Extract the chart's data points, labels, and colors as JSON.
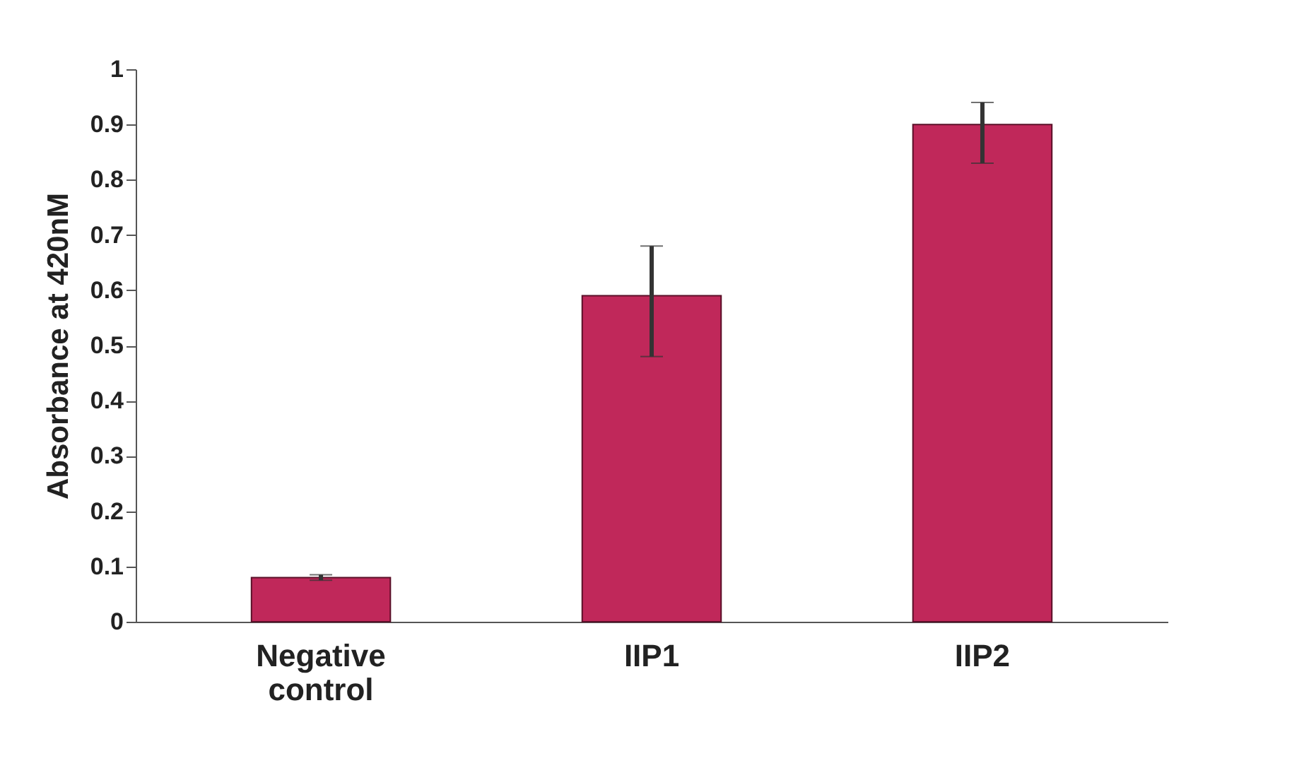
{
  "chart_data": {
    "type": "bar",
    "ylabel": "Absorbance at 420nM",
    "categories": [
      "Negative control",
      "IIP1",
      "IIP2"
    ],
    "values": [
      0.08,
      0.59,
      0.9
    ],
    "errors": [
      0.005,
      [
        0.48,
        0.68
      ],
      [
        0.83,
        0.94
      ]
    ],
    "color": "#c0285a",
    "ylim": [
      0,
      1
    ],
    "yticks": [
      0,
      0.1,
      0.2,
      0.3,
      0.4,
      0.5,
      0.6,
      0.7,
      0.8,
      0.9,
      1
    ],
    "grid": false
  }
}
